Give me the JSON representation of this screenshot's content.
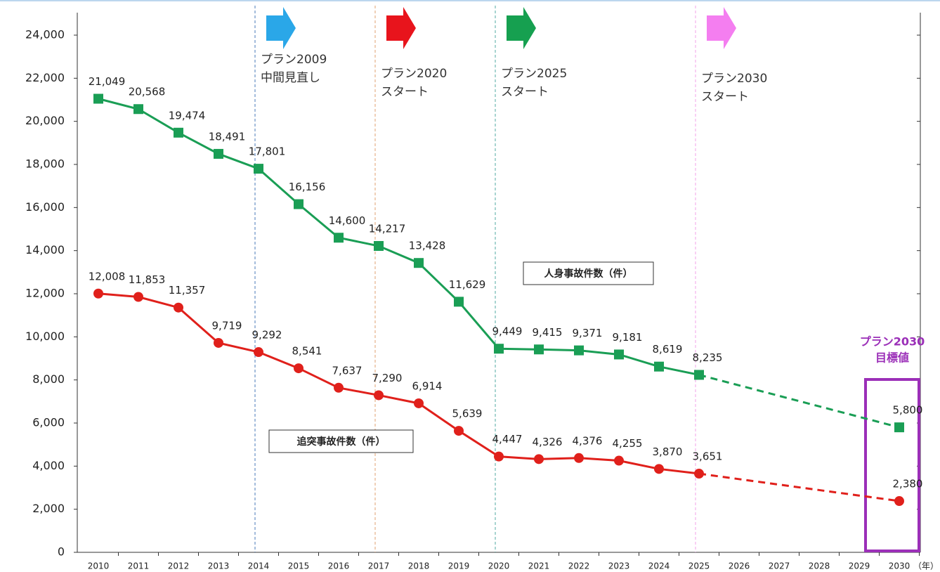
{
  "chart_data": {
    "type": "line",
    "categories": [
      "2010",
      "2011",
      "2012",
      "2013",
      "2014",
      "2015",
      "2016",
      "2017",
      "2018",
      "2019",
      "2020",
      "2021",
      "2022",
      "2023",
      "2024",
      "2025",
      "2026",
      "2027",
      "2028",
      "2029",
      "2030"
    ],
    "xlabel": "（年）",
    "ylim": [
      0,
      24000
    ],
    "yticks": [
      0,
      {
        "value": 2000,
        "label": "2,000"
      },
      {
        "value": 4000,
        "label": "4,000"
      },
      {
        "value": 6000,
        "label": "6,000"
      },
      {
        "value": 8000,
        "label": "8,000"
      },
      {
        "value": 10000,
        "label": "10,000"
      },
      {
        "value": 12000,
        "label": "12,000"
      },
      {
        "value": 14000,
        "label": "14,000"
      },
      {
        "value": 16000,
        "label": "16,000"
      },
      {
        "value": 18000,
        "label": "18,000"
      },
      {
        "value": 20000,
        "label": "20,000"
      },
      {
        "value": 22000,
        "label": "22,000"
      },
      {
        "value": 24000,
        "label": "24,000"
      }
    ],
    "grid": false,
    "series": [
      {
        "name": "人身事故件数（件）",
        "color": "#1a9e55",
        "marker": "square",
        "values": [
          21049,
          20568,
          19474,
          18491,
          17801,
          16156,
          14600,
          14217,
          13428,
          11629,
          9449,
          9415,
          9371,
          9181,
          8619,
          8235,
          null,
          null,
          null,
          null,
          5800
        ],
        "value_labels": [
          "21,049",
          "20,568",
          "19,474",
          "18,491",
          "17,801",
          "16,156",
          "14,600",
          "14,217",
          "13,428",
          "11,629",
          "9,449",
          "9,415",
          "9,371",
          "9,181",
          "8,619",
          "8,235",
          null,
          null,
          null,
          null,
          "5,800"
        ]
      },
      {
        "name": "追突事故件数（件）",
        "color": "#e0201b",
        "marker": "circle",
        "values": [
          12008,
          11853,
          11357,
          9719,
          9292,
          8541,
          7637,
          7290,
          6914,
          5639,
          4447,
          4326,
          4376,
          4255,
          3870,
          3651,
          null,
          null,
          null,
          null,
          2380
        ],
        "value_labels": [
          "12,008",
          "11,853",
          "11,357",
          "9,719",
          "9,292",
          "8,541",
          "7,637",
          "7,290",
          "6,914",
          "5,639",
          "4,447",
          "4,326",
          "4,376",
          "4,255",
          "3,870",
          "3,651",
          null,
          null,
          null,
          null,
          "2,380"
        ]
      }
    ],
    "annotations": [
      {
        "x": "2014",
        "color": "#2aa7e8",
        "line_color": "#4a78b8",
        "text": [
          "プラン2009",
          "中間見直し"
        ]
      },
      {
        "x": "2017",
        "color": "#e8141c",
        "line_color": "#e0a070",
        "text": [
          "プラン2020",
          "スタート"
        ]
      },
      {
        "x": "2020",
        "color": "#16a050",
        "line_color": "#50a8a0",
        "text": [
          "プラン2025",
          "スタート"
        ]
      },
      {
        "x": "2025",
        "color": "#f47ef0",
        "line_color": "#f0a0e8",
        "text": [
          "プラン2030",
          "スタート"
        ]
      }
    ],
    "target": {
      "x": "2030",
      "color": "#9b2fb8",
      "text": [
        "プラン2030",
        "目標値"
      ]
    }
  }
}
